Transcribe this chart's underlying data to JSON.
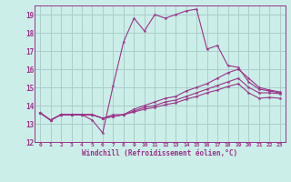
{
  "xlabel": "Windchill (Refroidissement éolien,°C)",
  "bg_color": "#cceee8",
  "grid_color": "#aacccc",
  "line_color": "#993388",
  "xlim": [
    -0.5,
    23.5
  ],
  "ylim": [
    12,
    19.5
  ],
  "yticks": [
    12,
    13,
    14,
    15,
    16,
    17,
    18,
    19
  ],
  "xticks": [
    0,
    1,
    2,
    3,
    4,
    5,
    6,
    7,
    8,
    9,
    10,
    11,
    12,
    13,
    14,
    15,
    16,
    17,
    18,
    19,
    20,
    21,
    22,
    23
  ],
  "series": [
    [
      13.6,
      13.2,
      13.5,
      13.5,
      13.5,
      13.2,
      12.5,
      15.1,
      17.5,
      18.8,
      18.1,
      19.0,
      18.8,
      19.0,
      19.2,
      19.3,
      17.1,
      17.3,
      16.2,
      16.1,
      15.3,
      14.9,
      14.8,
      14.7
    ],
    [
      13.6,
      13.2,
      13.5,
      13.5,
      13.5,
      13.5,
      13.3,
      13.5,
      13.5,
      13.8,
      14.0,
      14.2,
      14.4,
      14.5,
      14.8,
      15.0,
      15.2,
      15.5,
      15.8,
      16.0,
      15.5,
      15.0,
      14.85,
      14.75
    ],
    [
      13.6,
      13.2,
      13.5,
      13.5,
      13.5,
      13.5,
      13.3,
      13.4,
      13.5,
      13.7,
      13.9,
      14.0,
      14.2,
      14.3,
      14.5,
      14.7,
      14.9,
      15.1,
      15.3,
      15.5,
      15.0,
      14.7,
      14.7,
      14.65
    ],
    [
      13.6,
      13.2,
      13.5,
      13.5,
      13.5,
      13.5,
      13.3,
      13.4,
      13.5,
      13.65,
      13.8,
      13.9,
      14.05,
      14.15,
      14.35,
      14.5,
      14.7,
      14.85,
      15.05,
      15.2,
      14.7,
      14.4,
      14.45,
      14.4
    ]
  ]
}
